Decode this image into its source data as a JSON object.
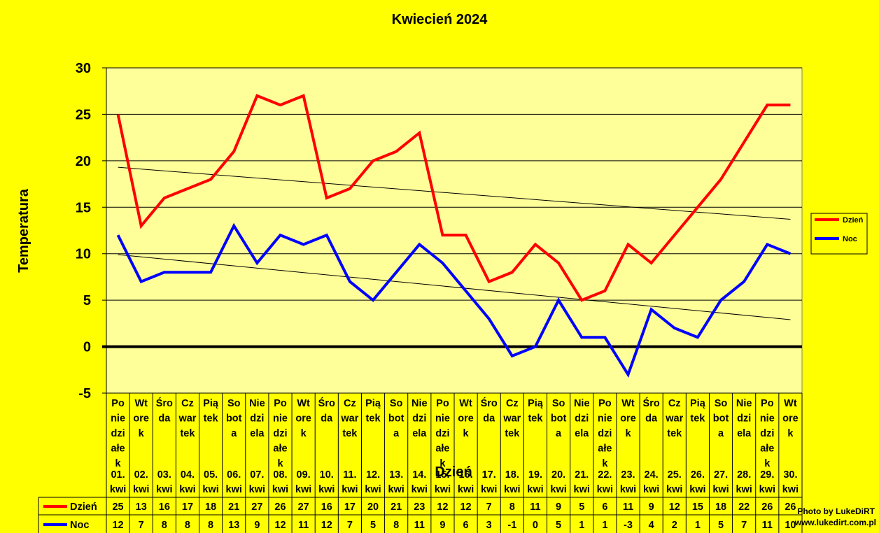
{
  "chart_data": {
    "type": "line",
    "title": "Kwiecień 2024",
    "xlabel": "Dzień",
    "ylabel": "Temperatura",
    "ylim": [
      -5,
      30
    ],
    "yticks": [
      "30",
      "25",
      "20",
      "15",
      "10",
      "5",
      "0",
      "-5"
    ],
    "grid": true,
    "legend_position": "right",
    "categories": [
      "01. kwi",
      "02. kwi",
      "03. kwi",
      "04. kwi",
      "05. kwi",
      "06. kwi",
      "07. kwi",
      "08. kwi",
      "09. kwi",
      "10. kwi",
      "11. kwi",
      "12. kwi",
      "13. kwi",
      "14. kwi",
      "15. kwi",
      "16. kwi",
      "17. kwi",
      "18. kwi",
      "19. kwi",
      "20. kwi",
      "21. kwi",
      "22. kwi",
      "23. kwi",
      "24. kwi",
      "25. kwi",
      "26. kwi",
      "27. kwi",
      "28. kwi",
      "29. kwi",
      "30. kwi"
    ],
    "day_names": [
      [
        "Po",
        "nie",
        "dzi",
        "ałe",
        "k"
      ],
      [
        "Wt",
        "ore",
        "k"
      ],
      [
        "Śro",
        "da"
      ],
      [
        "Cz",
        "war",
        "tek"
      ],
      [
        "Pią",
        "tek"
      ],
      [
        "So",
        "bot",
        "a"
      ],
      [
        "Nie",
        "dzi",
        "ela"
      ],
      [
        "Po",
        "nie",
        "dzi",
        "ałe",
        "k"
      ],
      [
        "Wt",
        "ore",
        "k"
      ],
      [
        "Śro",
        "da"
      ],
      [
        "Cz",
        "war",
        "tek"
      ],
      [
        "Pią",
        "tek"
      ],
      [
        "So",
        "bot",
        "a"
      ],
      [
        "Nie",
        "dzi",
        "ela"
      ],
      [
        "Po",
        "nie",
        "dzi",
        "ałe",
        "k"
      ],
      [
        "Wt",
        "ore",
        "k"
      ],
      [
        "Śro",
        "da"
      ],
      [
        "Cz",
        "war",
        "tek"
      ],
      [
        "Pią",
        "tek"
      ],
      [
        "So",
        "bot",
        "a"
      ],
      [
        "Nie",
        "dzi",
        "ela"
      ],
      [
        "Po",
        "nie",
        "dzi",
        "ałe",
        "k"
      ],
      [
        "Wt",
        "ore",
        "k"
      ],
      [
        "Śro",
        "da"
      ],
      [
        "Cz",
        "war",
        "tek"
      ],
      [
        "Pią",
        "tek"
      ],
      [
        "So",
        "bot",
        "a"
      ],
      [
        "Nie",
        "dzi",
        "ela"
      ],
      [
        "Po",
        "nie",
        "dzi",
        "ałe",
        "k"
      ],
      [
        "Wt",
        "ore",
        "k"
      ]
    ],
    "series": [
      {
        "name": "Dzień",
        "color": "#ff0000",
        "values": [
          25,
          13,
          16,
          17,
          18,
          21,
          27,
          26,
          27,
          16,
          17,
          20,
          21,
          23,
          12,
          12,
          7,
          8,
          11,
          9,
          5,
          6,
          11,
          9,
          12,
          15,
          18,
          22,
          26,
          26
        ]
      },
      {
        "name": "Noc",
        "color": "#0000ff",
        "values": [
          12,
          7,
          8,
          8,
          8,
          13,
          9,
          12,
          11,
          12,
          7,
          5,
          8,
          11,
          9,
          6,
          3,
          -1,
          0,
          5,
          1,
          1,
          -3,
          4,
          2,
          1,
          5,
          7,
          11,
          10
        ]
      }
    ],
    "trendlines": [
      {
        "series": "Dzień",
        "start": 19.3,
        "end": 13.7
      },
      {
        "series": "Noc",
        "start": 9.9,
        "end": 2.9
      }
    ]
  },
  "credit": {
    "line1": "Photo by LukeDiRT",
    "line2": "www.lukedirt.com.pl"
  },
  "colors": {
    "background": "#ffff00",
    "plot_area": "#ffff99"
  }
}
